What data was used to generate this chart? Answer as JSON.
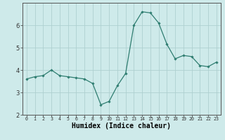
{
  "x": [
    0,
    1,
    2,
    3,
    4,
    5,
    6,
    7,
    8,
    9,
    10,
    11,
    12,
    13,
    14,
    15,
    16,
    17,
    18,
    19,
    20,
    21,
    22,
    23
  ],
  "y": [
    3.6,
    3.7,
    3.75,
    4.0,
    3.75,
    3.7,
    3.65,
    3.6,
    3.4,
    2.45,
    2.6,
    3.3,
    3.85,
    6.0,
    6.6,
    6.55,
    6.1,
    5.15,
    4.5,
    4.65,
    4.6,
    4.2,
    4.15,
    4.35
  ],
  "line_color": "#2e7d70",
  "marker": "D",
  "marker_size": 1.8,
  "bg_color": "#ceeaea",
  "grid_color": "#aed0d0",
  "xlabel": "Humidex (Indice chaleur)",
  "xlabel_fontsize": 7,
  "yticks": [
    2,
    3,
    4,
    5,
    6
  ],
  "xticks": [
    0,
    1,
    2,
    3,
    4,
    5,
    6,
    7,
    8,
    9,
    10,
    11,
    12,
    13,
    14,
    15,
    16,
    17,
    18,
    19,
    20,
    21,
    22,
    23
  ],
  "xlim": [
    -0.5,
    23.5
  ],
  "ylim": [
    2.0,
    7.0
  ],
  "ytick_fontsize": 6,
  "xtick_fontsize": 4.8,
  "linewidth": 0.9,
  "spine_color": "#555555"
}
